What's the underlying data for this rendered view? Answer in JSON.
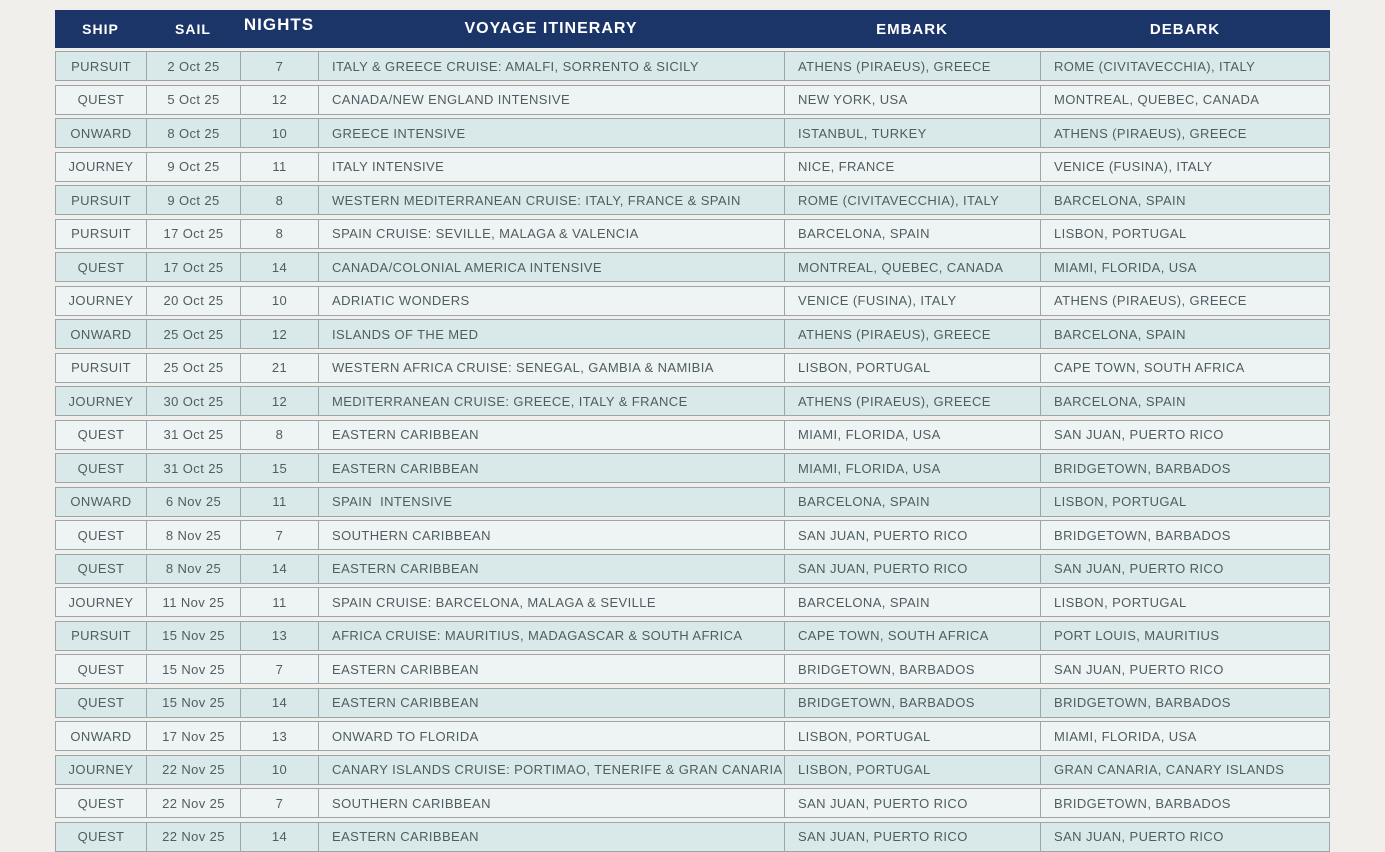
{
  "colors": {
    "page_bg": "#f0efec",
    "header_bg": "#1b3569",
    "header_text": "#ffffff",
    "row_shaded": "#d9e8e9",
    "row_light": "#eef4f4",
    "border": "#9aa6a9",
    "cell_text": "#4e5d61",
    "row_gap": "#ffffff"
  },
  "table": {
    "columns": [
      {
        "key": "ship",
        "label": "SHIP"
      },
      {
        "key": "sail",
        "label": "SAIL"
      },
      {
        "key": "nights",
        "label": "NIGHTS"
      },
      {
        "key": "itinerary",
        "label": "VOYAGE ITINERARY"
      },
      {
        "key": "embark",
        "label": "EMBARK"
      },
      {
        "key": "debark",
        "label": "DEBARK"
      }
    ],
    "rows": [
      {
        "ship": "PURSUIT",
        "sail": "2 Oct 25",
        "nights": "7",
        "itinerary": "ITALY & GREECE CRUISE: AMALFI, SORRENTO & SICILY",
        "embark": "ATHENS (PIRAEUS), GREECE",
        "debark": "ROME (CIVITAVECCHIA), ITALY",
        "shaded": true
      },
      {
        "ship": "QUEST",
        "sail": "5 Oct 25",
        "nights": "12",
        "itinerary": "CANADA/NEW ENGLAND INTENSIVE",
        "embark": "NEW YORK, USA",
        "debark": "MONTREAL, QUEBEC, CANADA",
        "shaded": false
      },
      {
        "ship": "ONWARD",
        "sail": "8 Oct 25",
        "nights": "10",
        "itinerary": "GREECE INTENSIVE",
        "embark": "ISTANBUL, TURKEY",
        "debark": "ATHENS (PIRAEUS), GREECE",
        "shaded": true
      },
      {
        "ship": "JOURNEY",
        "sail": "9 Oct 25",
        "nights": "11",
        "itinerary": "ITALY INTENSIVE",
        "embark": "NICE, FRANCE",
        "debark": "VENICE (FUSINA), ITALY",
        "shaded": false
      },
      {
        "ship": "PURSUIT",
        "sail": "9 Oct 25",
        "nights": "8",
        "itinerary": "WESTERN MEDITERRANEAN CRUISE: ITALY, FRANCE & SPAIN",
        "embark": "ROME (CIVITAVECCHIA), ITALY",
        "debark": "BARCELONA, SPAIN",
        "shaded": true
      },
      {
        "ship": "PURSUIT",
        "sail": "17 Oct 25",
        "nights": "8",
        "itinerary": "SPAIN CRUISE: SEVILLE, MALAGA & VALENCIA",
        "embark": "BARCELONA, SPAIN",
        "debark": "LISBON, PORTUGAL",
        "shaded": false
      },
      {
        "ship": "QUEST",
        "sail": "17 Oct 25",
        "nights": "14",
        "itinerary": "CANADA/COLONIAL AMERICA INTENSIVE",
        "embark": "MONTREAL, QUEBEC, CANADA",
        "debark": "MIAMI, FLORIDA, USA",
        "shaded": true
      },
      {
        "ship": "JOURNEY",
        "sail": "20 Oct 25",
        "nights": "10",
        "itinerary": "ADRIATIC WONDERS",
        "embark": "VENICE (FUSINA), ITALY",
        "debark": "ATHENS (PIRAEUS), GREECE",
        "shaded": false
      },
      {
        "ship": "ONWARD",
        "sail": "25 Oct 25",
        "nights": "12",
        "itinerary": "ISLANDS OF THE MED",
        "embark": "ATHENS (PIRAEUS), GREECE",
        "debark": "BARCELONA, SPAIN",
        "shaded": true
      },
      {
        "ship": "PURSUIT",
        "sail": "25 Oct 25",
        "nights": "21",
        "itinerary": "WESTERN AFRICA CRUISE: SENEGAL, GAMBIA & NAMIBIA",
        "embark": "LISBON, PORTUGAL",
        "debark": "CAPE TOWN, SOUTH AFRICA",
        "shaded": false
      },
      {
        "ship": "JOURNEY",
        "sail": "30 Oct 25",
        "nights": "12",
        "itinerary": "MEDITERRANEAN CRUISE: GREECE, ITALY & FRANCE",
        "embark": "ATHENS (PIRAEUS), GREECE",
        "debark": "BARCELONA, SPAIN",
        "shaded": true
      },
      {
        "ship": "QUEST",
        "sail": "31 Oct 25",
        "nights": "8",
        "itinerary": "EASTERN CARIBBEAN",
        "embark": "MIAMI, FLORIDA, USA",
        "debark": "SAN JUAN, PUERTO RICO",
        "shaded": false
      },
      {
        "ship": "QUEST",
        "sail": "31 Oct 25",
        "nights": "15",
        "itinerary": "EASTERN CARIBBEAN",
        "embark": "MIAMI, FLORIDA, USA",
        "debark": "BRIDGETOWN, BARBADOS",
        "shaded": true
      },
      {
        "ship": "ONWARD",
        "sail": "6 Nov 25",
        "nights": "11",
        "itinerary": "SPAIN  INTENSIVE",
        "embark": "BARCELONA, SPAIN",
        "debark": "LISBON, PORTUGAL",
        "shaded": true
      },
      {
        "ship": "QUEST",
        "sail": "8 Nov 25",
        "nights": "7",
        "itinerary": "SOUTHERN CARIBBEAN",
        "embark": "SAN JUAN, PUERTO RICO",
        "debark": "BRIDGETOWN, BARBADOS",
        "shaded": false
      },
      {
        "ship": "QUEST",
        "sail": "8 Nov 25",
        "nights": "14",
        "itinerary": "EASTERN CARIBBEAN",
        "embark": "SAN JUAN, PUERTO RICO",
        "debark": "SAN JUAN, PUERTO RICO",
        "shaded": true
      },
      {
        "ship": "JOURNEY",
        "sail": "11 Nov 25",
        "nights": "11",
        "itinerary": "SPAIN CRUISE: BARCELONA, MALAGA & SEVILLE",
        "embark": "BARCELONA, SPAIN",
        "debark": "LISBON, PORTUGAL",
        "shaded": false
      },
      {
        "ship": "PURSUIT",
        "sail": "15 Nov 25",
        "nights": "13",
        "itinerary": "AFRICA CRUISE: MAURITIUS, MADAGASCAR & SOUTH AFRICA",
        "embark": "CAPE TOWN, SOUTH AFRICA",
        "debark": "PORT LOUIS, MAURITIUS",
        "shaded": true
      },
      {
        "ship": "QUEST",
        "sail": "15 Nov 25",
        "nights": "7",
        "itinerary": "EASTERN CARIBBEAN",
        "embark": "BRIDGETOWN, BARBADOS",
        "debark": "SAN JUAN, PUERTO RICO",
        "shaded": false
      },
      {
        "ship": "QUEST",
        "sail": "15 Nov 25",
        "nights": "14",
        "itinerary": "EASTERN CARIBBEAN",
        "embark": "BRIDGETOWN, BARBADOS",
        "debark": "BRIDGETOWN, BARBADOS",
        "shaded": true
      },
      {
        "ship": "ONWARD",
        "sail": "17 Nov 25",
        "nights": "13",
        "itinerary": "ONWARD TO FLORIDA",
        "embark": "LISBON, PORTUGAL",
        "debark": "MIAMI, FLORIDA, USA",
        "shaded": false
      },
      {
        "ship": "JOURNEY",
        "sail": "22 Nov 25",
        "nights": "10",
        "itinerary": "CANARY ISLANDS CRUISE: PORTIMAO, TENERIFE & GRAN CANARIA",
        "embark": "LISBON, PORTUGAL",
        "debark": "GRAN CANARIA, CANARY ISLANDS",
        "shaded": true
      },
      {
        "ship": "QUEST",
        "sail": "22 Nov 25",
        "nights": "7",
        "itinerary": "SOUTHERN CARIBBEAN",
        "embark": "SAN JUAN, PUERTO RICO",
        "debark": "BRIDGETOWN, BARBADOS",
        "shaded": false
      },
      {
        "ship": "QUEST",
        "sail": "22 Nov 25",
        "nights": "14",
        "itinerary": "EASTERN CARIBBEAN",
        "embark": "SAN JUAN, PUERTO RICO",
        "debark": "SAN JUAN, PUERTO RICO",
        "shaded": true
      }
    ]
  }
}
